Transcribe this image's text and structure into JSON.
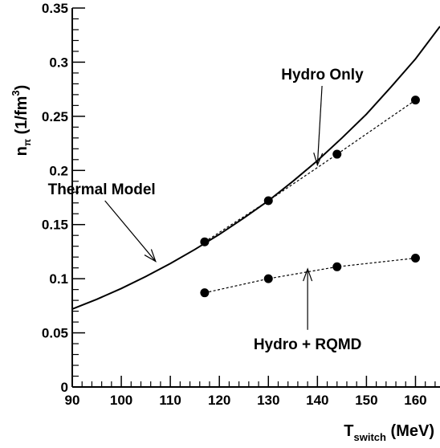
{
  "chart_data": {
    "type": "line",
    "xlabel": {
      "main": "T",
      "sub": "switch",
      "unit": "(MeV)"
    },
    "ylabel": {
      "main": "n",
      "sub": "π",
      "unit_pre": "(1/fm",
      "unit_sup": "3",
      "unit_post": ")"
    },
    "xlim": [
      90,
      165
    ],
    "ylim": [
      0,
      0.35
    ],
    "x_ticks": [
      90,
      100,
      110,
      120,
      130,
      140,
      150,
      160
    ],
    "x_tick_labels": [
      "90",
      "100",
      "110",
      "120",
      "130",
      "140",
      "150",
      "160"
    ],
    "y_ticks": [
      0,
      0.05,
      0.1,
      0.15,
      0.2,
      0.25,
      0.3,
      0.35
    ],
    "y_tick_labels": [
      "0",
      "0.05",
      "0.1",
      "0.15",
      "0.2",
      "0.25",
      "0.3",
      "0.35"
    ],
    "grid": false,
    "series": [
      {
        "name": "Thermal Model",
        "style": "solid",
        "x": [
          90,
          95,
          100,
          105,
          110,
          115,
          120,
          125,
          130,
          135,
          140,
          145,
          150,
          155,
          160,
          165
        ],
        "y": [
          0.072,
          0.081,
          0.091,
          0.102,
          0.114,
          0.127,
          0.141,
          0.156,
          0.172,
          0.19,
          0.209,
          0.23,
          0.252,
          0.277,
          0.303,
          0.333
        ]
      },
      {
        "name": "Hydro Only",
        "style": "dashed-markers",
        "x": [
          117,
          130,
          144,
          160
        ],
        "y": [
          0.134,
          0.172,
          0.215,
          0.265
        ]
      },
      {
        "name": "Hydro + RQMD",
        "style": "dashed-markers",
        "x": [
          117,
          130,
          144,
          160
        ],
        "y": [
          0.087,
          0.1,
          0.111,
          0.119
        ]
      }
    ],
    "annotations": [
      {
        "text": "Hydro Only",
        "at": [
          141,
          0.284
        ],
        "arrow_to": [
          140,
          0.205
        ]
      },
      {
        "text": "Thermal Model",
        "at": [
          96,
          0.178
        ],
        "arrow_to": [
          107,
          0.116
        ]
      },
      {
        "text": "Hydro + RQMD",
        "at": [
          138,
          0.035
        ],
        "arrow_to": [
          138,
          0.109
        ]
      }
    ]
  }
}
